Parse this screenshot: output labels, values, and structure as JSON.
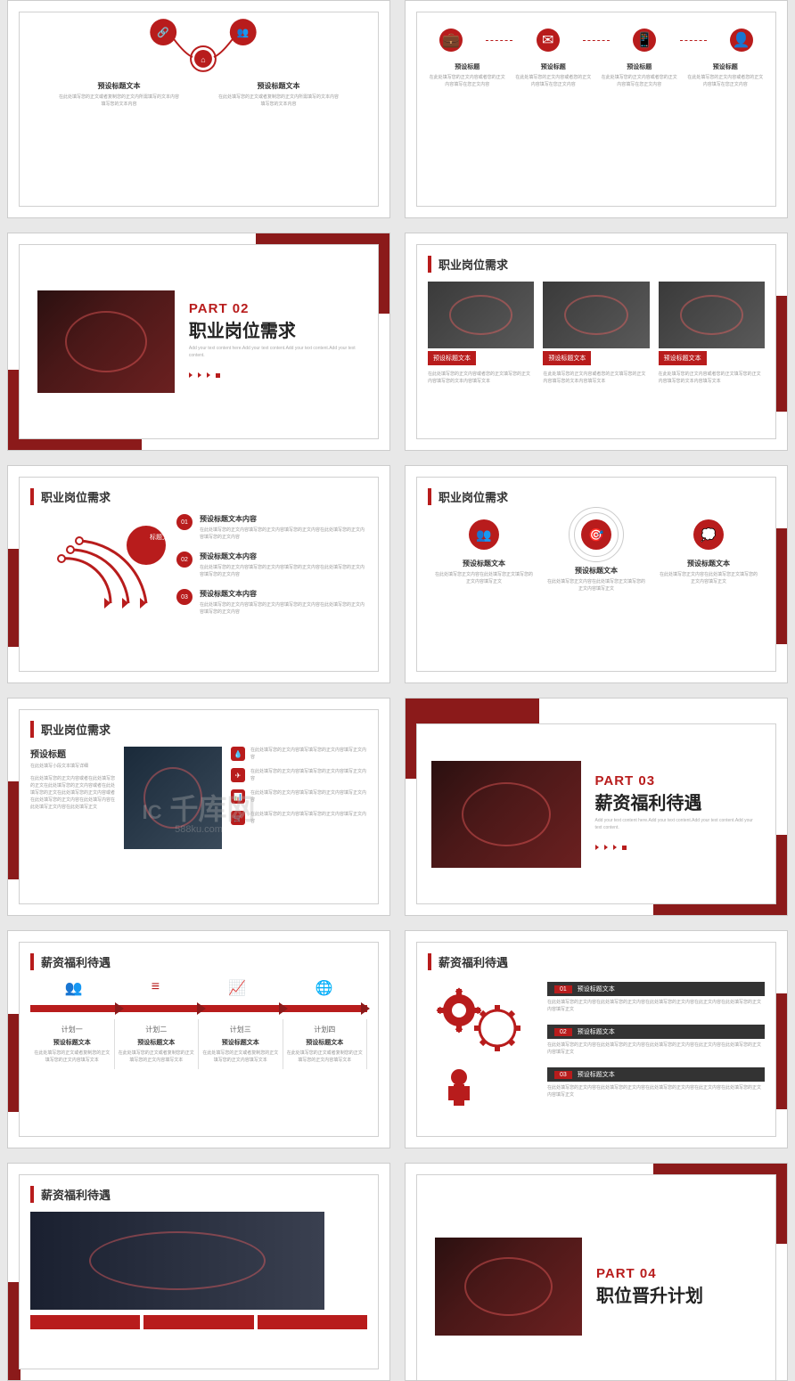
{
  "colors": {
    "red": "#b81c1c",
    "darkRed": "#8b1a1a",
    "text": "#333",
    "grey": "#999"
  },
  "watermark": {
    "main": "千库网",
    "sub": "588ku.com",
    "prefix": "IC"
  },
  "slides": {
    "s1": {
      "leftLabel": "预设标题文本",
      "rightLabel": "预设标题文本",
      "desc": "在此处填写您的正文或者复制您的正文内所需填写的文本内容填写您的文本内容"
    },
    "s2": {
      "items": [
        {
          "title": "预设标题",
          "desc": "在此处填写您的正文内容或者您的正文内容填写在您正文内容"
        },
        {
          "title": "预设标题",
          "desc": "在此处填写您的正文内容或者您的正文内容填写在您正文内容"
        },
        {
          "title": "预设标题",
          "desc": "在此处填写您的正文内容或者您的正文内容填写在您正文内容"
        },
        {
          "title": "预设标题",
          "desc": "在此处填写您的正文内容或者您的正文内容填写在您正文内容"
        }
      ]
    },
    "s3": {
      "part": "PART 02",
      "title": "职业岗位需求",
      "desc": "Add your text content here.Add your text content.Add your text content.Add your text content."
    },
    "s4": {
      "title": "职业岗位需求",
      "items": [
        {
          "tag": "预设标题文本",
          "desc": "在此处填写您的正文内容或者您的正文填写您的正文内容填写您的文本内容填写文本"
        },
        {
          "tag": "预设标题文本",
          "desc": "在此处填写您的正文内容或者您的正文填写您的正文内容填写您的文本内容填写文本"
        },
        {
          "tag": "预设标题文本",
          "desc": "在此处填写您的正文内容或者您的正文填写您的正文内容填写您的文本内容填写文本"
        }
      ]
    },
    "s5": {
      "title": "职业岗位需求",
      "centerLabel": "标题文字",
      "items": [
        {
          "num": "01",
          "title": "预设标题文本内容",
          "desc": "在此处填写您的正文内容填写您的正文内容填写您的正文内容在此处填写您的正文内容填写您的正文内容"
        },
        {
          "num": "02",
          "title": "预设标题文本内容",
          "desc": "在此处填写您的正文内容填写您的正文内容填写您的正文内容在此处填写您的正文内容填写您的正文内容"
        },
        {
          "num": "03",
          "title": "预设标题文本内容",
          "desc": "在此处填写您的正文内容填写您的正文内容填写您的正文内容在此处填写您的正文内容填写您的正文内容"
        }
      ]
    },
    "s6": {
      "title": "职业岗位需求",
      "items": [
        {
          "title": "预设标题文本",
          "desc": "在此处填写您正文内容在此处填写您正文填写您的正文内容填写正文"
        },
        {
          "title": "预设标题文本",
          "desc": "在此处填写您正文内容在此处填写您正文填写您的正文内容填写正文"
        },
        {
          "title": "预设标题文本",
          "desc": "在此处填写您正文内容在此处填写您正文填写您的正文内容填写正文"
        }
      ]
    },
    "s7": {
      "title": "职业岗位需求",
      "subTitle": "预设标题",
      "subDesc": "在此处填写小段文本填写详细",
      "mainDesc": "在此处填写您的正文内容或者在此处填写您的正文在此处填写您的正文内容或者在此处填写您的正文在此处填写您的正文内容或者在此处填写您的正文内容在此处填写内容在此处填写正文内容在此处填写正文",
      "iconDesc": "在此处填写您的正文内容填写填写您的正文内容填写正文内容"
    },
    "s8": {
      "part": "PART 03",
      "title": "薪资福利待遇",
      "desc": "Add your text content here.Add your text content.Add your text content.Add your text content."
    },
    "s9": {
      "title": "薪资福利待遇",
      "plans": [
        {
          "name": "计划一",
          "sub": "预设标题文本",
          "desc": "在此处填写您的正文或者复制您的正文填写您的正文内容填写文本"
        },
        {
          "name": "计划二",
          "sub": "预设标题文本",
          "desc": "在此处填写您的正文或者复制您的正文填写您的正文内容填写文本"
        },
        {
          "name": "计划三",
          "sub": "预设标题文本",
          "desc": "在此处填写您的正文或者复制您的正文填写您的正文内容填写文本"
        },
        {
          "name": "计划四",
          "sub": "预设标题文本",
          "desc": "在此处填写您的正文或者复制您的正文填写您的正文内容填写文本"
        }
      ]
    },
    "s10": {
      "title": "薪资福利待遇",
      "items": [
        {
          "num": "01",
          "title": "预设标题文本",
          "desc": "在此处填写您的正文内容在此处填写您的正文内容在此处填写您的正文内容在此正文内容在此处填写您的正文内容填写正文"
        },
        {
          "num": "02",
          "title": "预设标题文本",
          "desc": "在此处填写您的正文内容在此处填写您的正文内容在此处填写您的正文内容在此正文内容在此处填写您的正文内容填写正文"
        },
        {
          "num": "03",
          "title": "预设标题文本",
          "desc": "在此处填写您的正文内容在此处填写您的正文内容在此处填写您的正文内容在此正文内容在此处填写您的正文内容填写正文"
        }
      ]
    },
    "s11": {
      "title": "薪资福利待遇"
    },
    "s12": {
      "part": "PART 04",
      "title": "职位晋升计划"
    }
  }
}
